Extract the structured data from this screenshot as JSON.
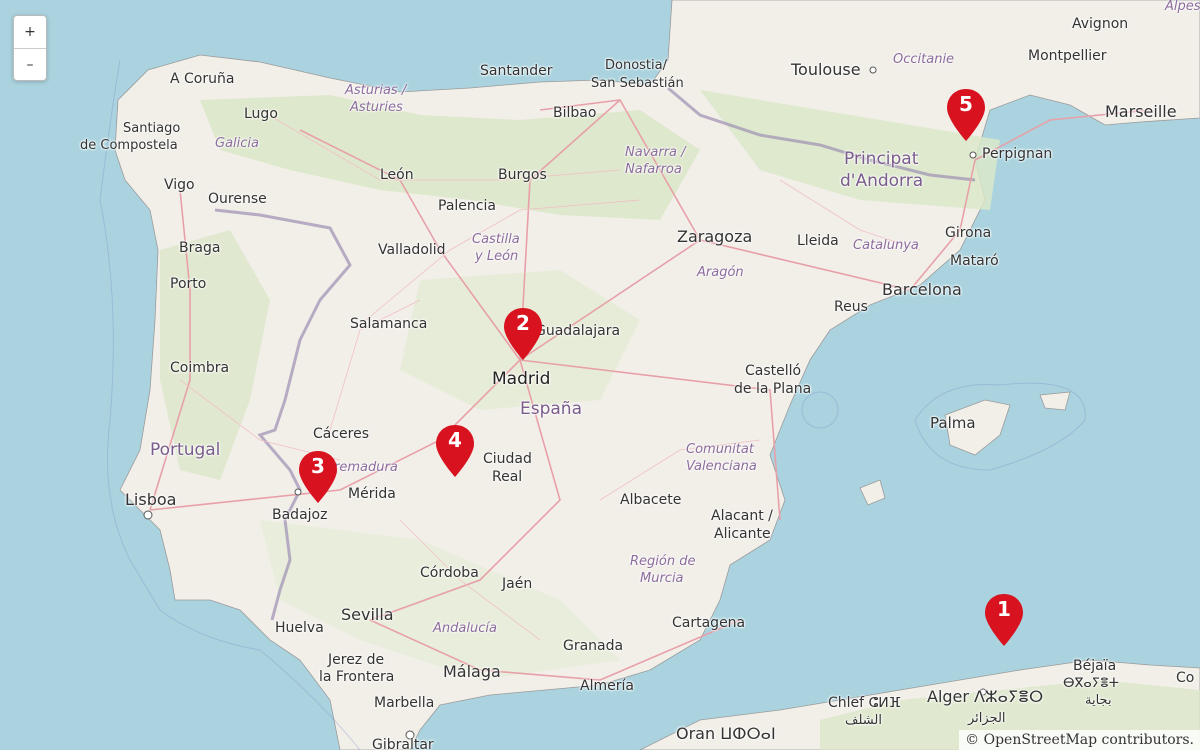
{
  "zoom_controls": {
    "zoom_in": "+",
    "zoom_out": "–"
  },
  "markers": [
    {
      "label": "1"
    },
    {
      "label": "2"
    },
    {
      "label": "3"
    },
    {
      "label": "4"
    },
    {
      "label": "5"
    }
  ],
  "marker_color": "#d8121f",
  "attribution": {
    "symbol": "©",
    "link": "OpenStreetMap",
    "suffix": "contributors."
  },
  "labels": {
    "countries": {
      "espana": "España",
      "portugal": "Portugal",
      "andorra_1": "Principat",
      "andorra_2": "d'Andorra"
    },
    "regions": {
      "asturias_1": "Asturias /",
      "asturias_2": "Asturies",
      "galicia": "Galicia",
      "cyl_1": "Castilla",
      "cyl_2": "y León",
      "navarra_1": "Navarra /",
      "navarra_2": "Nafarroa",
      "aragon": "Aragón",
      "catalunya": "Catalunya",
      "occitanie": "Occitanie",
      "extremadura": "Extremadura",
      "cval_1": "Comunitat",
      "cval_2": "Valenciana",
      "murcia_1": "Región de",
      "murcia_2": "Murcia",
      "andalucia": "Andalucía",
      "alpes": "Alpes d'"
    },
    "cities": {
      "acoruna": "A Coruña",
      "lugo": "Lugo",
      "santiago_1": "Santiago",
      "santiago_2": "de Compostela",
      "vigo": "Vigo",
      "ourense": "Ourense",
      "braga": "Braga",
      "porto": "Porto",
      "coimbra": "Coimbra",
      "lisboa": "Lisboa",
      "santander": "Santander",
      "donostia_1": "Donostia/",
      "donostia_2": "San Sebastián",
      "bilbao": "Bilbao",
      "leon": "León",
      "burgos": "Burgos",
      "palencia": "Palencia",
      "valladolid": "Valladolid",
      "salamanca": "Salamanca",
      "guadalajara": "Guadalajara",
      "madrid": "Madrid",
      "caceres": "Cáceres",
      "merida": "Mérida",
      "badajoz": "Badajoz",
      "ciudadreal_1": "Ciudad",
      "ciudadreal_2": "Real",
      "toulouse": "Toulouse",
      "montpellier": "Montpellier",
      "avignon": "Avignon",
      "marseille": "Marseille",
      "perpignan": "Perpignan",
      "zaragoza": "Zaragoza",
      "lleida": "Lleida",
      "girona": "Girona",
      "mataro": "Mataró",
      "barcelona": "Barcelona",
      "reus": "Reus",
      "castello_1": "Castelló",
      "castello_2": "de la Plana",
      "palma": "Palma",
      "albacete": "Albacete",
      "alacant_1": "Alacant /",
      "alacant_2": "Alicante",
      "cordoba": "Córdoba",
      "jaen": "Jaén",
      "sevilla": "Sevilla",
      "huelva": "Huelva",
      "jerez_1": "Jerez de",
      "jerez_2": "la Frontera",
      "malaga": "Málaga",
      "granada": "Granada",
      "almeria": "Almería",
      "cartagena": "Cartagena",
      "marbella": "Marbella",
      "gibraltar": "Gibraltar",
      "oran": "Oran ⵡⵀⵔⴰⵏ",
      "chlef": "Chlef ⵛⵍⴼ",
      "chlef_ar": "الشلف",
      "alger": "Alger ⴷⵣⴰⵢⴻⵔ",
      "alger_ar": "الجزائر",
      "bejaia": "Béjaïa",
      "bejaia_tz": "ⴱⴳⴰⵢⴻⵜ",
      "bejaia_ar": "بجاية",
      "co": "Co"
    }
  }
}
